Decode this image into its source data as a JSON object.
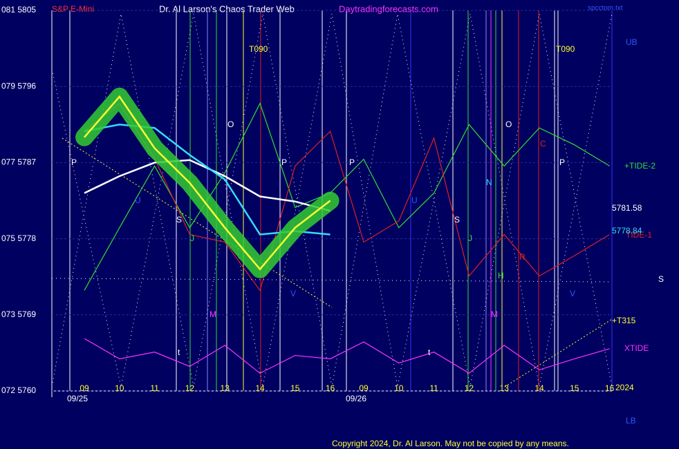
{
  "chart_data": {
    "type": "line",
    "title": "Dr. Al Larson's Chaos Trader Web",
    "subtitle": "S&P E-Mini",
    "website": "Daytradingforecasts.com",
    "file": "spcctom.txt",
    "copyright": "Copyright 2024, Dr. Al Larson. May not be copied by any means.",
    "categories": [
      "09",
      "10",
      "11",
      "12",
      "13",
      "14",
      "15",
      "16",
      "09",
      "10",
      "11",
      "12",
      "13",
      "14",
      "15",
      "16"
    ],
    "dates": [
      "09/25",
      "09/26"
    ],
    "ylim": [
      5760,
      5805
    ],
    "yticks": [
      {
        "value": 5760,
        "label": "072 5760"
      },
      {
        "value": 5769,
        "label": "073 5769"
      },
      {
        "value": 5778,
        "label": "075 5778"
      },
      {
        "value": 5787,
        "label": "077 5787"
      },
      {
        "value": 5796,
        "label": "079 5796"
      },
      {
        "value": 5805,
        "label": "081 5805"
      }
    ],
    "grid": true,
    "series": [
      {
        "name": "+TIDE-2",
        "color": "#33dd33",
        "values": [
          5771.9,
          5779.3,
          5786.6,
          5779.3,
          5785.8,
          5794.0,
          5781.7,
          5783.4,
          5787.4,
          5779.3,
          5783.4,
          5791.5,
          5786.6,
          5791.1,
          5789.1,
          5786.6
        ]
      },
      {
        "name": "TIDE-1",
        "color": "#e02020",
        "values": [
          5790.7,
          5794.0,
          5787.5,
          5778.5,
          5777.6,
          5771.9,
          5786.6,
          5790.7,
          5777.6,
          5780.1,
          5789.9,
          5773.6,
          5778.5,
          5773.6,
          5776.0,
          5778.5
        ]
      },
      {
        "name": "XTIDE",
        "color": "#ff33ff",
        "values": [
          5766.2,
          5763.8,
          5764.6,
          5762.9,
          5765.4,
          5762.1,
          5764.2,
          5763.8,
          5765.8,
          5763.3,
          5764.6,
          5762.1,
          5765.4,
          5762.5,
          5763.8,
          5765.0
        ]
      },
      {
        "color": "#ffffff",
        "values": [
          5783.4,
          5785.4,
          5787.0,
          5787.3,
          5785.4,
          5783.0,
          5782.4,
          5781.3,
          null,
          null,
          null,
          null,
          null,
          null,
          null,
          null
        ]
      },
      {
        "color": "#33ddff",
        "values": [
          5790.7,
          5791.5,
          5791.1,
          5787.9,
          5785.0,
          5778.5,
          5778.9,
          5778.5,
          null,
          null,
          null,
          null,
          null,
          null,
          null,
          null
        ]
      },
      {
        "color": "#ffff33",
        "values": [
          5790.0,
          5794.8,
          5788.7,
          5784.6,
          5779.3,
          5774.4,
          5779.3,
          5782.5,
          null,
          null,
          null,
          null,
          null,
          null,
          null,
          null
        ]
      }
    ],
    "labels": [
      "UB",
      "5781.58",
      "5778.84",
      "S",
      "+T315",
      "2024",
      "LB"
    ],
    "annotations": [
      "T090",
      "T090",
      "P",
      "O",
      "P",
      "P",
      "O",
      "P",
      "U",
      "U",
      "S",
      "S",
      "J",
      "J",
      "M",
      "M",
      "V",
      "V",
      "N",
      "H",
      "C",
      "R",
      "t",
      "t"
    ]
  }
}
